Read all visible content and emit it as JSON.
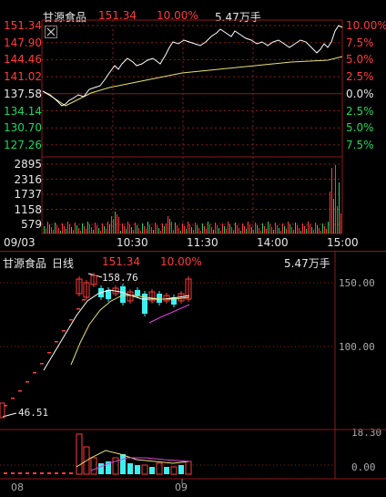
{
  "intraday": {
    "header": {
      "name": "甘源食品",
      "price": "151.34",
      "change_pct": "10.00%",
      "volume": "5.47万手"
    },
    "close_icon": "close-icon",
    "price_axis": [
      {
        "label": "151.34",
        "pct": "10.00%",
        "value": 151.34,
        "side": "up"
      },
      {
        "label": "147.90",
        "pct": "7.5%",
        "value": 147.9,
        "side": "up"
      },
      {
        "label": "144.46",
        "pct": "5.0%",
        "value": 144.46,
        "side": "up"
      },
      {
        "label": "141.02",
        "pct": "2.5%",
        "value": 141.02,
        "side": "up"
      },
      {
        "label": "137.58",
        "pct": "0.0%",
        "value": 137.58,
        "side": "flat"
      },
      {
        "label": "134.14",
        "pct": "2.5%",
        "value": 134.14,
        "side": "down"
      },
      {
        "label": "130.70",
        "pct": "5.0%",
        "value": 130.7,
        "side": "down"
      },
      {
        "label": "127.26",
        "pct": "7.5%",
        "value": 127.26,
        "side": "down"
      }
    ],
    "volume_axis": [
      "2895",
      "2316",
      "1737",
      "1158",
      "579"
    ],
    "time_axis": [
      "09/03",
      "10:30",
      "11:30",
      "14:00",
      "15:00"
    ]
  },
  "daily": {
    "header": {
      "name": "甘源食品",
      "period": "日线",
      "price": "151.34",
      "change_pct": "10.00%",
      "volume": "5.47万手"
    },
    "price_axis": [
      "150.00",
      "100.00"
    ],
    "high_label": "158.76",
    "low_label": "46.51",
    "volume_axis": [
      "18.30",
      "0.00"
    ],
    "date_axis": [
      "08",
      "09"
    ]
  },
  "colors": {
    "up": "#ff3b3b",
    "down": "#1ed760",
    "price_line": "#ffffff",
    "avg_line": "#e8e070",
    "ma_magenta": "#e040e0",
    "cyan": "#3df0f0",
    "grid": "#8b1a1a"
  }
}
